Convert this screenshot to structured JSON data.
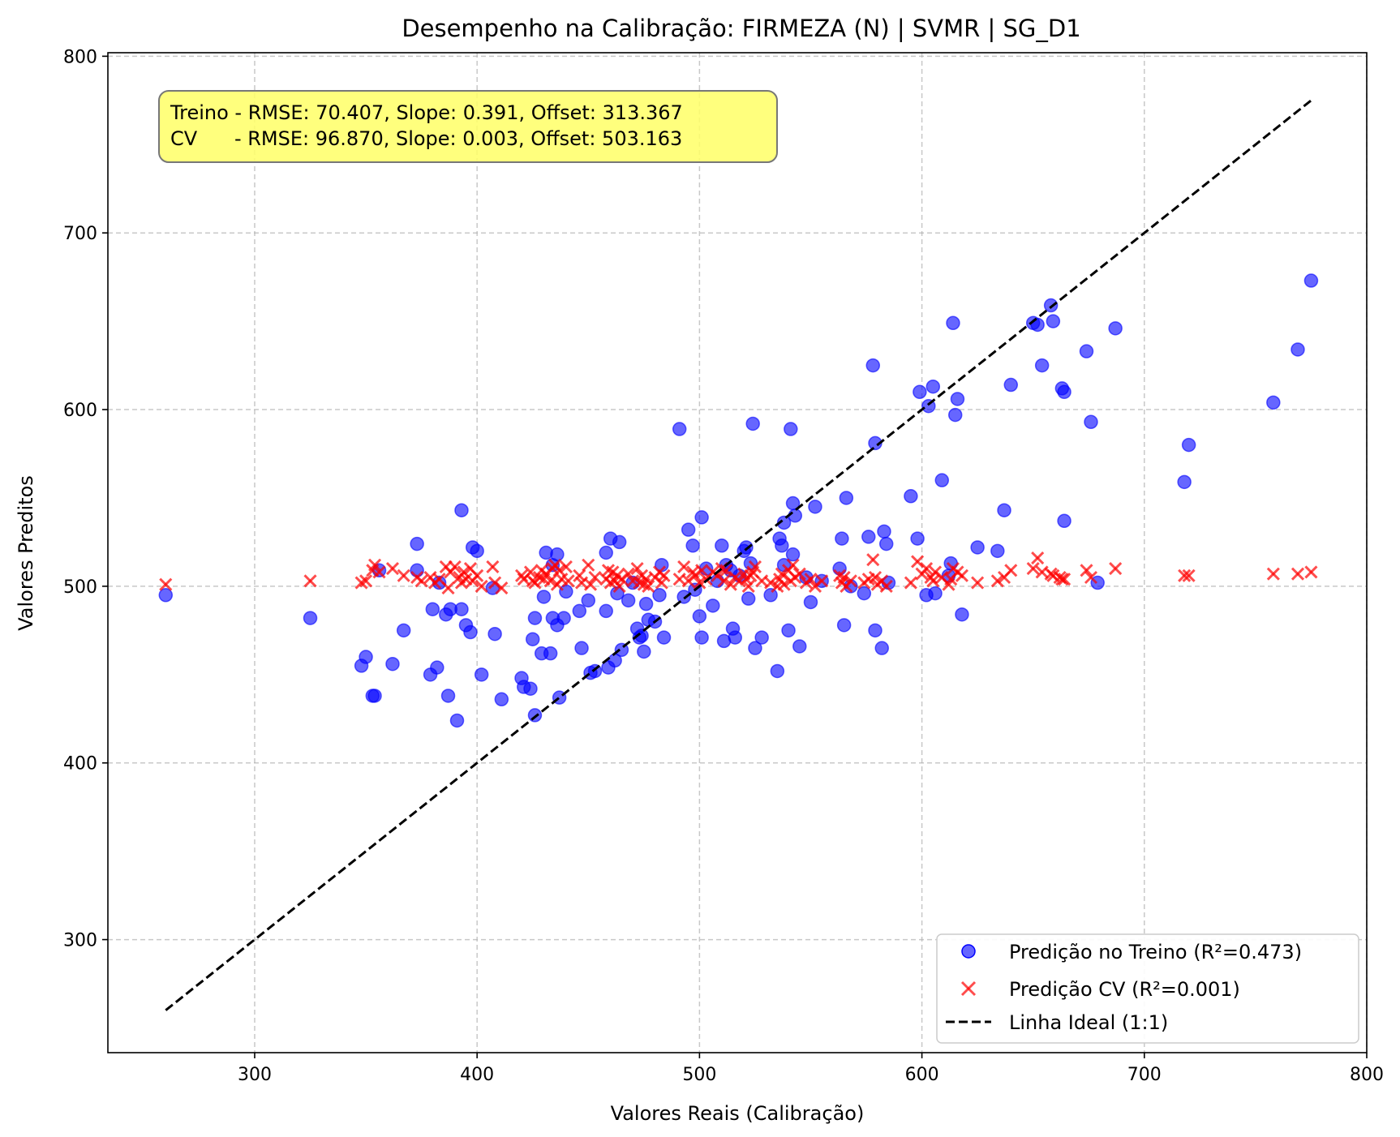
{
  "chart_data": {
    "type": "scatter",
    "title": "Desempenho na Calibração: FIRMEZA (N) | SVMR | SG_D1",
    "xlabel": "Valores Reais (Calibração)",
    "ylabel": "Valores Preditos",
    "xlim": [
      234,
      800
    ],
    "ylim": [
      236,
      802
    ],
    "xticks": [
      300,
      400,
      500,
      600,
      700,
      800
    ],
    "yticks": [
      300,
      400,
      500,
      600,
      700,
      800
    ],
    "grid": true,
    "legend_position": "lower-right",
    "stats_box": {
      "lines": [
        "Treino - RMSE: 70.407, Slope: 0.391, Offset: 313.367",
        "CV      - RMSE: 96.870, Slope: 0.003, Offset: 503.163"
      ],
      "color": "#ffff66"
    },
    "series": [
      {
        "name": "Predição no Treino (R²=0.473)",
        "marker": "circle",
        "color": "#0000ff",
        "points": [
          [
            260,
            495
          ],
          [
            325,
            482
          ],
          [
            348,
            455
          ],
          [
            350,
            460
          ],
          [
            353,
            438
          ],
          [
            354,
            438
          ],
          [
            356,
            509
          ],
          [
            362,
            456
          ],
          [
            367,
            475
          ],
          [
            373,
            524
          ],
          [
            373,
            509
          ],
          [
            379,
            450
          ],
          [
            380,
            487
          ],
          [
            382,
            454
          ],
          [
            383,
            502
          ],
          [
            386,
            484
          ],
          [
            387,
            438
          ],
          [
            388,
            487
          ],
          [
            391,
            424
          ],
          [
            393,
            543
          ],
          [
            393,
            487
          ],
          [
            395,
            478
          ],
          [
            397,
            474
          ],
          [
            398,
            522
          ],
          [
            400,
            520
          ],
          [
            402,
            450
          ],
          [
            407,
            499
          ],
          [
            408,
            473
          ],
          [
            411,
            436
          ],
          [
            420,
            448
          ],
          [
            421,
            443
          ],
          [
            424,
            442
          ],
          [
            425,
            470
          ],
          [
            426,
            482
          ],
          [
            426,
            427
          ],
          [
            429,
            462
          ],
          [
            430,
            494
          ],
          [
            431,
            519
          ],
          [
            433,
            462
          ],
          [
            434,
            482
          ],
          [
            434,
            512
          ],
          [
            436,
            518
          ],
          [
            436,
            478
          ],
          [
            437,
            437
          ],
          [
            439,
            482
          ],
          [
            440,
            497
          ],
          [
            446,
            486
          ],
          [
            447,
            465
          ],
          [
            450,
            492
          ],
          [
            451,
            451
          ],
          [
            453,
            452
          ],
          [
            458,
            486
          ],
          [
            458,
            519
          ],
          [
            459,
            454
          ],
          [
            460,
            527
          ],
          [
            462,
            458
          ],
          [
            463,
            496
          ],
          [
            464,
            525
          ],
          [
            465,
            464
          ],
          [
            468,
            492
          ],
          [
            470,
            502
          ],
          [
            472,
            476
          ],
          [
            473,
            471
          ],
          [
            474,
            472
          ],
          [
            475,
            463
          ],
          [
            476,
            490
          ],
          [
            477,
            481
          ],
          [
            480,
            480
          ],
          [
            482,
            495
          ],
          [
            483,
            512
          ],
          [
            484,
            471
          ],
          [
            491,
            589
          ],
          [
            493,
            494
          ],
          [
            495,
            532
          ],
          [
            497,
            523
          ],
          [
            498,
            498
          ],
          [
            500,
            483
          ],
          [
            501,
            471
          ],
          [
            501,
            539
          ],
          [
            503,
            510
          ],
          [
            506,
            489
          ],
          [
            508,
            503
          ],
          [
            510,
            523
          ],
          [
            511,
            469
          ],
          [
            512,
            512
          ],
          [
            514,
            509
          ],
          [
            515,
            476
          ],
          [
            516,
            471
          ],
          [
            518,
            506
          ],
          [
            520,
            520
          ],
          [
            521,
            522
          ],
          [
            522,
            493
          ],
          [
            523,
            513
          ],
          [
            524,
            592
          ],
          [
            525,
            465
          ],
          [
            528,
            471
          ],
          [
            532,
            495
          ],
          [
            535,
            452
          ],
          [
            536,
            527
          ],
          [
            537,
            523
          ],
          [
            538,
            536
          ],
          [
            538,
            512
          ],
          [
            540,
            475
          ],
          [
            541,
            589
          ],
          [
            542,
            518
          ],
          [
            542,
            547
          ],
          [
            543,
            540
          ],
          [
            545,
            466
          ],
          [
            548,
            505
          ],
          [
            550,
            491
          ],
          [
            552,
            545
          ],
          [
            555,
            503
          ],
          [
            563,
            510
          ],
          [
            564,
            527
          ],
          [
            565,
            478
          ],
          [
            566,
            550
          ],
          [
            568,
            500
          ],
          [
            574,
            496
          ],
          [
            576,
            528
          ],
          [
            578,
            625
          ],
          [
            579,
            475
          ],
          [
            579,
            581
          ],
          [
            582,
            465
          ],
          [
            583,
            531
          ],
          [
            584,
            524
          ],
          [
            585,
            502
          ],
          [
            595,
            551
          ],
          [
            598,
            527
          ],
          [
            599,
            610
          ],
          [
            602,
            495
          ],
          [
            603,
            602
          ],
          [
            605,
            613
          ],
          [
            606,
            496
          ],
          [
            609,
            560
          ],
          [
            612,
            506
          ],
          [
            613,
            513
          ],
          [
            614,
            649
          ],
          [
            615,
            597
          ],
          [
            616,
            606
          ],
          [
            618,
            484
          ],
          [
            625,
            522
          ],
          [
            634,
            520
          ],
          [
            637,
            543
          ],
          [
            640,
            614
          ],
          [
            650,
            649
          ],
          [
            652,
            648
          ],
          [
            654,
            625
          ],
          [
            658,
            659
          ],
          [
            659,
            650
          ],
          [
            663,
            612
          ],
          [
            664,
            610
          ],
          [
            664,
            537
          ],
          [
            674,
            633
          ],
          [
            676,
            593
          ],
          [
            679,
            502
          ],
          [
            687,
            646
          ],
          [
            718,
            559
          ],
          [
            720,
            580
          ],
          [
            758,
            604
          ],
          [
            769,
            634
          ],
          [
            775,
            673
          ]
        ]
      },
      {
        "name": "Predição CV (R²=0.001)",
        "marker": "x",
        "color": "#ff0000",
        "points": [
          [
            260,
            501
          ],
          [
            325,
            503
          ],
          [
            348,
            502
          ],
          [
            350,
            503
          ],
          [
            353,
            509
          ],
          [
            354,
            512
          ],
          [
            356,
            508
          ],
          [
            362,
            510
          ],
          [
            367,
            506
          ],
          [
            373,
            505
          ],
          [
            375,
            503
          ],
          [
            379,
            505
          ],
          [
            381,
            502
          ],
          [
            383,
            504
          ],
          [
            386,
            511
          ],
          [
            387,
            499
          ],
          [
            388,
            508
          ],
          [
            390,
            511
          ],
          [
            392,
            505
          ],
          [
            393,
            502
          ],
          [
            394,
            508
          ],
          [
            395,
            504
          ],
          [
            397,
            510
          ],
          [
            398,
            503
          ],
          [
            400,
            506
          ],
          [
            402,
            500
          ],
          [
            407,
            511
          ],
          [
            408,
            502
          ],
          [
            411,
            499
          ],
          [
            420,
            506
          ],
          [
            421,
            504
          ],
          [
            424,
            508
          ],
          [
            425,
            503
          ],
          [
            426,
            502
          ],
          [
            428,
            505
          ],
          [
            429,
            509
          ],
          [
            430,
            504
          ],
          [
            431,
            507
          ],
          [
            433,
            503
          ],
          [
            434,
            510
          ],
          [
            435,
            512
          ],
          [
            436,
            501
          ],
          [
            437,
            509
          ],
          [
            438,
            504
          ],
          [
            440,
            511
          ],
          [
            441,
            503
          ],
          [
            446,
            506
          ],
          [
            447,
            502
          ],
          [
            450,
            512
          ],
          [
            451,
            501
          ],
          [
            453,
            505
          ],
          [
            458,
            504
          ],
          [
            459,
            509
          ],
          [
            460,
            502
          ],
          [
            461,
            508
          ],
          [
            462,
            503
          ],
          [
            463,
            506
          ],
          [
            464,
            500
          ],
          [
            465,
            504
          ],
          [
            468,
            507
          ],
          [
            470,
            503
          ],
          [
            472,
            510
          ],
          [
            473,
            502
          ],
          [
            474,
            506
          ],
          [
            475,
            501
          ],
          [
            476,
            504
          ],
          [
            477,
            500
          ],
          [
            480,
            505
          ],
          [
            482,
            508
          ],
          [
            483,
            502
          ],
          [
            484,
            506
          ],
          [
            491,
            504
          ],
          [
            493,
            511
          ],
          [
            495,
            503
          ],
          [
            497,
            508
          ],
          [
            498,
            506
          ],
          [
            500,
            502
          ],
          [
            501,
            509
          ],
          [
            503,
            504
          ],
          [
            506,
            508
          ],
          [
            508,
            506
          ],
          [
            510,
            510
          ],
          [
            511,
            503
          ],
          [
            512,
            509
          ],
          [
            514,
            501
          ],
          [
            516,
            505
          ],
          [
            518,
            503
          ],
          [
            520,
            507
          ],
          [
            521,
            504
          ],
          [
            522,
            500
          ],
          [
            523,
            506
          ],
          [
            524,
            508
          ],
          [
            525,
            511
          ],
          [
            528,
            503
          ],
          [
            532,
            502
          ],
          [
            535,
            500
          ],
          [
            536,
            504
          ],
          [
            537,
            507
          ],
          [
            538,
            501
          ],
          [
            540,
            509
          ],
          [
            541,
            503
          ],
          [
            542,
            512
          ],
          [
            543,
            505
          ],
          [
            545,
            507
          ],
          [
            548,
            502
          ],
          [
            550,
            504
          ],
          [
            552,
            500
          ],
          [
            555,
            503
          ],
          [
            563,
            506
          ],
          [
            564,
            502
          ],
          [
            565,
            505
          ],
          [
            566,
            500
          ],
          [
            568,
            503
          ],
          [
            574,
            502
          ],
          [
            576,
            504
          ],
          [
            578,
            515
          ],
          [
            579,
            505
          ],
          [
            580,
            501
          ],
          [
            582,
            503
          ],
          [
            584,
            500
          ],
          [
            595,
            502
          ],
          [
            598,
            514
          ],
          [
            600,
            507
          ],
          [
            602,
            510
          ],
          [
            604,
            505
          ],
          [
            605,
            503
          ],
          [
            606,
            508
          ],
          [
            609,
            505
          ],
          [
            612,
            501
          ],
          [
            613,
            504
          ],
          [
            614,
            510
          ],
          [
            616,
            508
          ],
          [
            618,
            506
          ],
          [
            625,
            502
          ],
          [
            634,
            503
          ],
          [
            637,
            505
          ],
          [
            640,
            509
          ],
          [
            650,
            510
          ],
          [
            652,
            516
          ],
          [
            654,
            508
          ],
          [
            658,
            507
          ],
          [
            659,
            506
          ],
          [
            662,
            505
          ],
          [
            663,
            504
          ],
          [
            664,
            504
          ],
          [
            674,
            509
          ],
          [
            676,
            505
          ],
          [
            687,
            510
          ],
          [
            718,
            506
          ],
          [
            720,
            506
          ],
          [
            758,
            507
          ],
          [
            769,
            507
          ],
          [
            775,
            508
          ]
        ]
      },
      {
        "name": "Linha Ideal (1:1)",
        "marker": "dashed-line",
        "color": "#000000",
        "points": [
          [
            260,
            260
          ],
          [
            775,
            775
          ]
        ]
      }
    ]
  }
}
